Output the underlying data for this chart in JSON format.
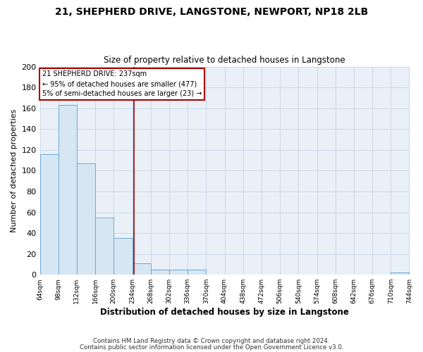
{
  "title": "21, SHEPHERD DRIVE, LANGSTONE, NEWPORT, NP18 2LB",
  "subtitle": "Size of property relative to detached houses in Langstone",
  "xlabel": "Distribution of detached houses by size in Langstone",
  "ylabel": "Number of detached properties",
  "bin_edges": [
    64,
    98,
    132,
    166,
    200,
    234,
    268,
    302,
    336,
    370,
    404,
    438,
    472,
    506,
    540,
    574,
    608,
    642,
    676,
    710,
    744
  ],
  "bar_heights": [
    116,
    163,
    107,
    55,
    35,
    11,
    5,
    5,
    5,
    0,
    0,
    0,
    0,
    0,
    0,
    0,
    0,
    0,
    0,
    2
  ],
  "bar_color": "#d6e6f2",
  "bar_edge_color": "#6aaad4",
  "property_size": 237,
  "vline_color": "#990000",
  "annotation_line1": "21 SHEPHERD DRIVE: 237sqm",
  "annotation_line2": "← 95% of detached houses are smaller (477)",
  "annotation_line3": "5% of semi-detached houses are larger (23) →",
  "annotation_box_color": "#ffffff",
  "annotation_box_edge": "#aa0000",
  "ylim": [
    0,
    200
  ],
  "yticks": [
    0,
    20,
    40,
    60,
    80,
    100,
    120,
    140,
    160,
    180,
    200
  ],
  "footer1": "Contains HM Land Registry data © Crown copyright and database right 2024.",
  "footer2": "Contains public sector information licensed under the Open Government Licence v3.0.",
  "bg_color": "#ffffff",
  "plot_bg_color": "#eaf0f8",
  "grid_color": "#c8d8e8"
}
